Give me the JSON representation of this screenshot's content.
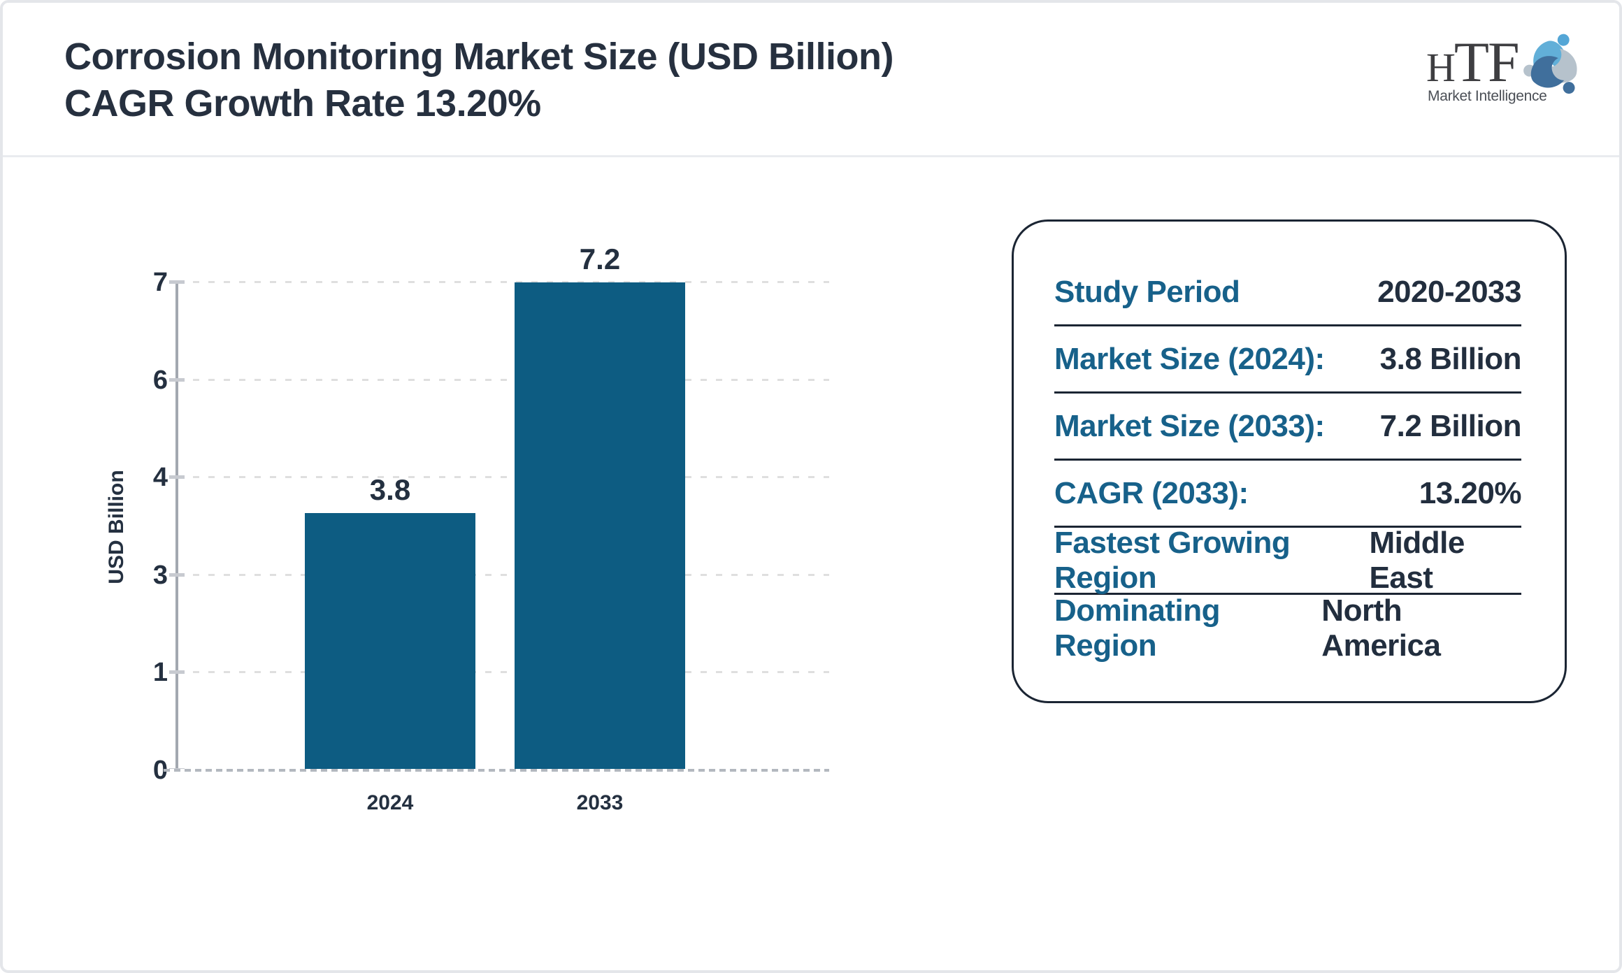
{
  "header": {
    "title_line1": "Corrosion Monitoring Market Size (USD Billion)",
    "title_line2": "CAGR Growth Rate 13.20%"
  },
  "logo": {
    "brand_h": "H",
    "brand_tf": "TF",
    "tagline": "Market Intelligence",
    "swirl_colors": {
      "light_blue": "#62afd8",
      "light_blue_head": "#54a6d6",
      "gray": "#b6c2cc",
      "dark_blue": "#406f9c"
    }
  },
  "chart_data": {
    "type": "bar",
    "title": "Corrosion Monitoring Market Size (USD Billion) CAGR Growth Rate 13.20%",
    "categories": [
      "2024",
      "2033"
    ],
    "values": [
      3.8,
      7.2
    ],
    "bar_labels": [
      "3.8",
      "7.2"
    ],
    "xlabel": "",
    "ylabel": "USD Billion",
    "ylim": [
      0,
      7.2
    ],
    "ytick_values": [
      0,
      1.44,
      2.88,
      4.32,
      5.76,
      7.2
    ],
    "ytick_labels": [
      "0",
      "1",
      "3",
      "4",
      "6",
      "7"
    ],
    "grid": "horizontal dashed",
    "legend": "none",
    "bar_color": "#0d5c82"
  },
  "panel": {
    "rows": [
      {
        "label": "Study Period",
        "value": "2020-2033"
      },
      {
        "label": "Market Size (2024):",
        "value": "3.8 Billion"
      },
      {
        "label": "Market Size (2033):",
        "value": "7.2 Billion"
      },
      {
        "label": "CAGR (2033):",
        "value": "13.20%"
      },
      {
        "label": "Fastest Growing Region",
        "value": "Middle East"
      },
      {
        "label": "Dominating Region",
        "value": "North America"
      }
    ]
  },
  "colors": {
    "title_text": "#26303f",
    "navy_text": "#243040",
    "teal_label": "#17618a",
    "bar": "#0d5c82",
    "panel_border": "#1b2533",
    "frame_border": "#e4e6ea"
  }
}
